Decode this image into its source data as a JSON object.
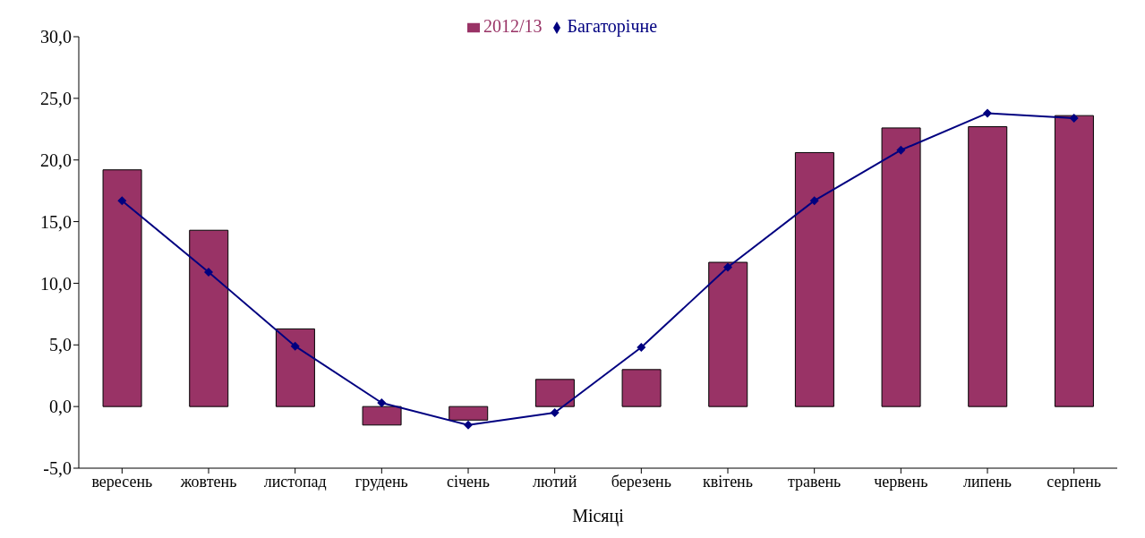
{
  "chart_data": {
    "type": "bar",
    "xlabel": "Місяці",
    "categories": [
      "вересень",
      "жовтень",
      "листопад",
      "грудень",
      "січень",
      "лютий",
      "березень",
      "квітень",
      "травень",
      "червень",
      "липень",
      "серпень"
    ],
    "series": [
      {
        "name": "2012/13",
        "color": "#993366",
        "values": [
          19.2,
          14.3,
          6.3,
          -1.5,
          -1.1,
          2.2,
          3.0,
          11.7,
          20.6,
          22.6,
          22.7,
          23.6
        ]
      },
      {
        "name": "Багаторічне",
        "type": "line",
        "color": "#000080",
        "marker": "diamond",
        "values": [
          16.7,
          10.9,
          4.9,
          0.3,
          -1.5,
          -0.5,
          4.8,
          11.3,
          16.7,
          20.8,
          23.8,
          23.4
        ]
      }
    ],
    "ylim": [
      -5,
      30
    ],
    "yticks": [
      {
        "value": -5,
        "label": "-5,0"
      },
      {
        "value": 0,
        "label": "0,0"
      },
      {
        "value": 5,
        "label": "5,0"
      },
      {
        "value": 10,
        "label": "10,0"
      },
      {
        "value": 15,
        "label": "15,0"
      },
      {
        "value": 20,
        "label": "20,0"
      },
      {
        "value": 25,
        "label": "25,0"
      },
      {
        "value": 30,
        "label": "30,0"
      }
    ],
    "grid": false,
    "legend": "top"
  }
}
